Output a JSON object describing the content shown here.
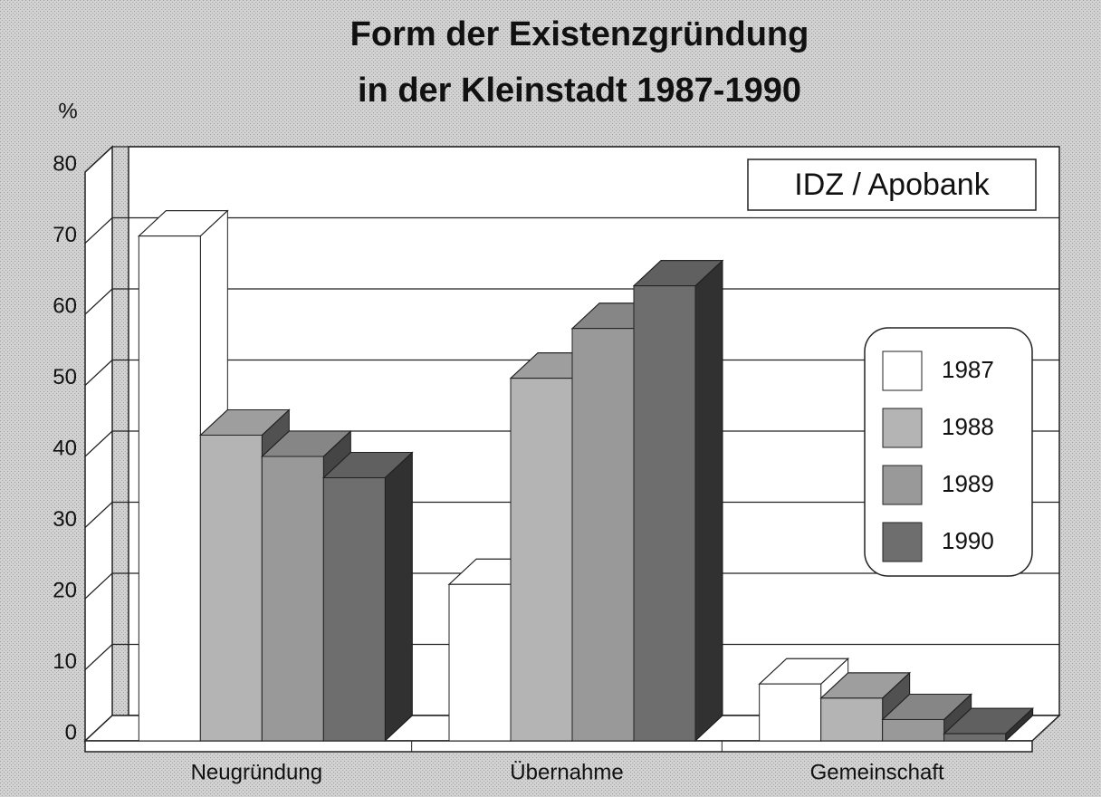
{
  "chart_data": {
    "type": "bar3d",
    "title": [
      "Form der Existenzgründung",
      "in der Kleinstadt 1987-1990"
    ],
    "y_label": "%",
    "annotation": "IDZ / Apobank",
    "categories": [
      "Neugründung",
      "Übernahme",
      "Gemeinschaft"
    ],
    "series": [
      {
        "name": "1987",
        "color": "#ffffff",
        "values": [
          71,
          22,
          8
        ]
      },
      {
        "name": "1988",
        "color": "#b4b4b4",
        "values": [
          43,
          51,
          6
        ]
      },
      {
        "name": "1989",
        "color": "#999999",
        "values": [
          40,
          58,
          3
        ]
      },
      {
        "name": "1990",
        "color": "#6e6e6e",
        "values": [
          37,
          64,
          1
        ]
      }
    ],
    "ylim": [
      0,
      80
    ],
    "yticks": [
      0,
      10,
      20,
      30,
      40,
      50,
      60,
      70,
      80
    ],
    "grid": true
  }
}
